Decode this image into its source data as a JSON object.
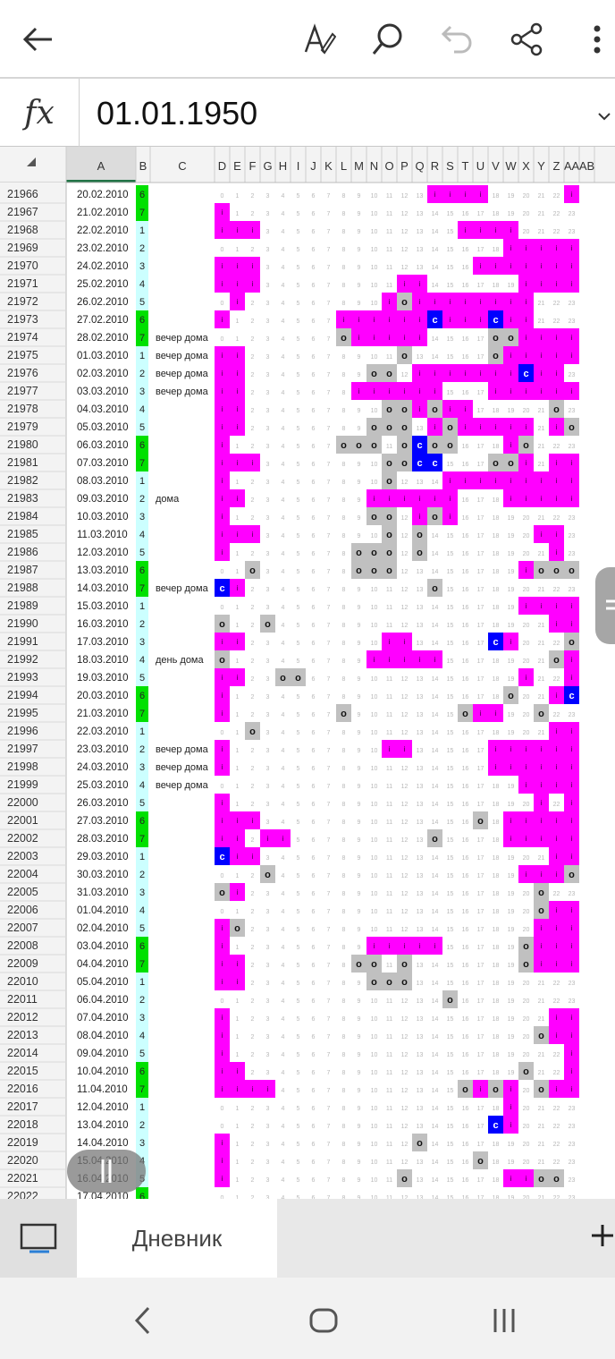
{
  "formula_bar": {
    "fx_label": "fx",
    "value": "01.01.1950"
  },
  "columns": {
    "A": "A",
    "B": "B",
    "C": "C",
    "hours": [
      "D",
      "E",
      "F",
      "G",
      "H",
      "I",
      "J",
      "K",
      "L",
      "M",
      "N",
      "O",
      "P",
      "Q",
      "R",
      "S",
      "T",
      "U",
      "V",
      "W",
      "X",
      "Y",
      "Z",
      "AA",
      "AB"
    ]
  },
  "sheet": {
    "tab_label": "Дневник"
  },
  "colors": {
    "magenta": "#ff00ff",
    "gray": "#c0c0c0",
    "blue": "#0000ff",
    "green": "#00e000",
    "cyan": "#ccffff",
    "header_selected": "#dcdcdc",
    "header_accent": "#217346"
  },
  "icons": {
    "back": "back-arrow-icon",
    "format": "text-format-icon",
    "search": "search-icon",
    "undo": "undo-icon",
    "share": "share-icon",
    "more": "more-vertical-icon"
  },
  "rows": [
    {
      "n": "21966",
      "date": "20.02.2010",
      "dow": "6",
      "note": "",
      "hours": "--------------------MM---MMM",
      "hours24": "..............iiii.....i"
    },
    {
      "n": "21967",
      "date": "21.02.2010",
      "dow": "7",
      "note": "",
      "hours": "i.......................i"
    },
    {
      "n": "21968",
      "date": "22.02.2010",
      "dow": "1",
      "note": "",
      "hours": "iii.............iiii...."
    },
    {
      "n": "21969",
      "date": "23.02.2010",
      "dow": "2",
      "note": "",
      "hours": "...................iiiii"
    },
    {
      "n": "21970",
      "date": "24.02.2010",
      "dow": "3",
      "note": "",
      "hours": "iii..............iiiiiii"
    },
    {
      "n": "21971",
      "date": "25.02.2010",
      "dow": "4",
      "note": "",
      "hours": "iii.........ii......iiii"
    },
    {
      "n": "21972",
      "date": "26.02.2010",
      "dow": "5",
      "note": "",
      "hours": "ci.........iOiiiiiiii..."
    },
    {
      "n": "21973",
      "date": "27.02.2010",
      "dow": "6",
      "note": "",
      "hours": "i.......iiiiiiCiiiCii..."
    },
    {
      "n": "21974",
      "date": "28.02.2010",
      "dow": "7",
      "note": "вечер дома",
      "hours": "........Oiiiii....OOiiii"
    },
    {
      "n": "21975",
      "date": "01.03.2010",
      "dow": "1",
      "note": "вечер дома",
      "hours": "ii..........O.....Oiiiii"
    },
    {
      "n": "21976",
      "date": "02.03.2010",
      "dow": "2",
      "note": "вечер дома",
      "hours": "ii........OO.iiiiiiiCii"
    },
    {
      "n": "21977",
      "date": "03.03.2010",
      "dow": "3",
      "note": "вечер дома",
      "hours": "ii.......iiiiii...iiiiii"
    },
    {
      "n": "21978",
      "date": "04.03.2010",
      "dow": "4",
      "note": "",
      "hours": "ii.........OOiOii.....O"
    },
    {
      "n": "21979",
      "date": "05.03.2010",
      "dow": "5",
      "note": "",
      "hours": "ii........OOO.iOiiiii.iO"
    },
    {
      "n": "21980",
      "date": "06.03.2010",
      "dow": "6",
      "note": "",
      "hours": "i.......OOO.OCOO...iO..."
    },
    {
      "n": "21981",
      "date": "07.03.2010",
      "dow": "7",
      "note": "",
      "hours": "iii........OOCC...OOi.ii"
    },
    {
      "n": "21982",
      "date": "08.03.2010",
      "dow": "1",
      "note": "",
      "hours": "i..........O...iiiiiiiii"
    },
    {
      "n": "21983",
      "date": "09.03.2010",
      "dow": "2",
      "note": "дома",
      "hours": "ii........iiiiii...iiiii"
    },
    {
      "n": "21984",
      "date": "10.03.2010",
      "dow": "3",
      "note": "",
      "hours": "i.........OO.iOi........"
    },
    {
      "n": "21985",
      "date": "11.03.2010",
      "dow": "4",
      "note": "",
      "hours": "iii........O.O.......ii."
    },
    {
      "n": "21986",
      "date": "12.03.2010",
      "dow": "5",
      "note": "",
      "hours": "i........OOO.O........i"
    },
    {
      "n": "21987",
      "date": "13.03.2010",
      "dow": "6",
      "note": "",
      "hours": "..O......OOO........iOOO"
    },
    {
      "n": "21988",
      "date": "14.03.2010",
      "dow": "7",
      "note": "вечер дома",
      "hours": "Ci............O........."
    },
    {
      "n": "21989",
      "date": "15.03.2010",
      "dow": "1",
      "note": "",
      "hours": "....................iiii"
    },
    {
      "n": "21990",
      "date": "16.03.2010",
      "dow": "2",
      "note": "",
      "hours": "O..O..................ii"
    },
    {
      "n": "21991",
      "date": "17.03.2010",
      "dow": "3",
      "note": "",
      "hours": "ii.........ii.....Ci...O"
    },
    {
      "n": "21992",
      "date": "18.03.2010",
      "dow": "4",
      "note": "день дома",
      "hours": "O.........iiiii.......Oi"
    },
    {
      "n": "21993",
      "date": "19.03.2010",
      "dow": "5",
      "note": "",
      "hours": "ii..OO..............i..i"
    },
    {
      "n": "21994",
      "date": "20.03.2010",
      "dow": "6",
      "note": "",
      "hours": "i..................O..iC"
    },
    {
      "n": "21995",
      "date": "21.03.2010",
      "dow": "7",
      "note": "",
      "hours": "i.......O.......Oii..O.."
    },
    {
      "n": "21996",
      "date": "22.03.2010",
      "dow": "1",
      "note": "",
      "hours": "..O...................ii"
    },
    {
      "n": "21997",
      "date": "23.03.2010",
      "dow": "2",
      "note": "вечер дома",
      "hours": "i..........ii.....iiiiii"
    },
    {
      "n": "21998",
      "date": "24.03.2010",
      "dow": "3",
      "note": "вечер дома",
      "hours": "i.................iiiiii"
    },
    {
      "n": "21999",
      "date": "25.03.2010",
      "dow": "4",
      "note": "вечер дома",
      "hours": "....................iiii"
    },
    {
      "n": "22000",
      "date": "26.03.2010",
      "dow": "5",
      "note": "",
      "hours": "i....................i.i"
    },
    {
      "n": "22001",
      "date": "27.03.2010",
      "dow": "6",
      "note": "",
      "hours": "iii..............O.iiiii"
    },
    {
      "n": "22002",
      "date": "28.03.2010",
      "dow": "7",
      "note": "",
      "hours": "ii.ii.........O....iiiii"
    },
    {
      "n": "22003",
      "date": "29.03.2010",
      "dow": "1",
      "note": "",
      "hours": "Cii...................ii"
    },
    {
      "n": "22004",
      "date": "30.03.2010",
      "dow": "2",
      "note": "",
      "hours": "...O................iiiO"
    },
    {
      "n": "22005",
      "date": "31.03.2010",
      "dow": "3",
      "note": "",
      "hours": "Oi...................O.."
    },
    {
      "n": "22006",
      "date": "01.04.2010",
      "dow": "4",
      "note": "",
      "hours": ".....................Oii"
    },
    {
      "n": "22007",
      "date": "02.04.2010",
      "dow": "5",
      "note": "",
      "hours": "iO...................iii"
    },
    {
      "n": "22008",
      "date": "03.04.2010",
      "dow": "6",
      "note": "",
      "hours": "i.........iiiii.....Oiii"
    },
    {
      "n": "22009",
      "date": "04.04.2010",
      "dow": "7",
      "note": "",
      "hours": "ii.......OO.O.......Oiii"
    },
    {
      "n": "22010",
      "date": "05.04.2010",
      "dow": "1",
      "note": "",
      "hours": "ii........OOO..........."
    },
    {
      "n": "22011",
      "date": "06.04.2010",
      "dow": "2",
      "note": "",
      "hours": "...............O........"
    },
    {
      "n": "22012",
      "date": "07.04.2010",
      "dow": "3",
      "note": "",
      "hours": "i.....................ii"
    },
    {
      "n": "22013",
      "date": "08.04.2010",
      "dow": "4",
      "note": "",
      "hours": "i....................Oii"
    },
    {
      "n": "22014",
      "date": "09.04.2010",
      "dow": "5",
      "note": "",
      "hours": "i......................i"
    },
    {
      "n": "22015",
      "date": "10.04.2010",
      "dow": "6",
      "note": "",
      "hours": "ii..................O..i"
    },
    {
      "n": "22016",
      "date": "11.04.2010",
      "dow": "7",
      "note": "",
      "hours": "iiii............OiOi.Oiii"
    },
    {
      "n": "22017",
      "date": "12.04.2010",
      "dow": "1",
      "note": "",
      "hours": "...................i...."
    },
    {
      "n": "22018",
      "date": "13.04.2010",
      "dow": "2",
      "note": "",
      "hours": "..................Ci...."
    },
    {
      "n": "22019",
      "date": "14.04.2010",
      "dow": "3",
      "note": "",
      "hours": "i............O.........."
    },
    {
      "n": "22020",
      "date": "15.04.2010",
      "dow": "4",
      "note": "",
      "hours": "i................O......"
    },
    {
      "n": "22021",
      "date": "16.04.2010",
      "dow": "5",
      "note": "",
      "hours": "i...........O......iiOO."
    },
    {
      "n": "22022",
      "date": "17.04.2010",
      "dow": "6",
      "note": "",
      "hours": "........................"
    }
  ]
}
